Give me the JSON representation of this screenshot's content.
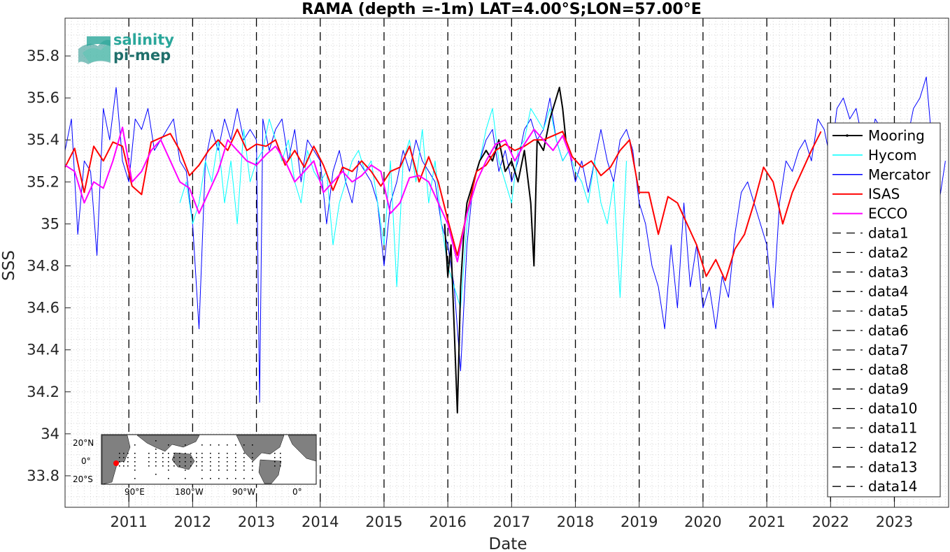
{
  "chart_data": {
    "type": "line",
    "title": "RAMA (depth =-1m) LAT=4.00°S;LON=57.00°E",
    "xlabel": "Date",
    "ylabel": "SSS",
    "xlim": [
      2010.0,
      2023.85
    ],
    "ylim": [
      33.65,
      35.98
    ],
    "grid": "on (minor dotted)",
    "legend_placement": "right",
    "x_ticks": [
      2011,
      2012,
      2013,
      2014,
      2015,
      2016,
      2017,
      2018,
      2019,
      2020,
      2021,
      2022,
      2023
    ],
    "x_tick_labels": [
      "2011",
      "2012",
      "2013",
      "2014",
      "2015",
      "2016",
      "2017",
      "2018",
      "2019",
      "2020",
      "2021",
      "2022",
      "2023"
    ],
    "y_ticks": [
      33.8,
      34,
      34.2,
      34.4,
      34.6,
      34.8,
      35,
      35.2,
      35.4,
      35.6,
      35.8
    ],
    "y_tick_labels": [
      "33.8",
      "34",
      "34.2",
      "34.4",
      "34.6",
      "34.8",
      "35",
      "35.2",
      "35.4",
      "35.6",
      "35.8"
    ],
    "series": [
      {
        "name": "Mercator",
        "color": "#0000ff",
        "x": [
          2010.0,
          2010.1,
          2010.2,
          2010.3,
          2010.4,
          2010.5,
          2010.6,
          2010.7,
          2010.8,
          2010.9,
          2011.0,
          2011.1,
          2011.2,
          2011.3,
          2011.4,
          2011.5,
          2011.6,
          2011.7,
          2011.8,
          2011.9,
          2012.0,
          2012.1,
          2012.2,
          2012.3,
          2012.4,
          2012.5,
          2012.6,
          2012.7,
          2012.8,
          2012.9,
          2013.0,
          2013.05,
          2013.1,
          2013.2,
          2013.3,
          2013.4,
          2013.5,
          2013.6,
          2013.7,
          2013.8,
          2013.9,
          2014.0,
          2014.1,
          2014.2,
          2014.3,
          2014.4,
          2014.5,
          2014.6,
          2014.7,
          2014.8,
          2014.9,
          2015.0,
          2015.1,
          2015.2,
          2015.3,
          2015.4,
          2015.5,
          2015.6,
          2015.7,
          2015.8,
          2015.9,
          2016.0,
          2016.1,
          2016.2,
          2016.3,
          2016.4,
          2016.5,
          2016.6,
          2016.7,
          2016.8,
          2016.9,
          2017.0,
          2017.1,
          2017.2,
          2017.3,
          2017.4,
          2017.5,
          2017.6,
          2017.7,
          2017.8,
          2017.9,
          2018.0,
          2018.1,
          2018.2,
          2018.3,
          2018.4,
          2018.5,
          2018.6,
          2018.7,
          2018.8,
          2018.9,
          2019.0,
          2019.1,
          2019.2,
          2019.3,
          2019.4,
          2019.5,
          2019.6,
          2019.7,
          2019.8,
          2019.9,
          2020.0,
          2020.1,
          2020.2,
          2020.3,
          2020.4,
          2020.5,
          2020.6,
          2020.7,
          2020.8,
          2020.9,
          2021.0,
          2021.1,
          2021.2,
          2021.3,
          2021.4,
          2021.5,
          2021.6,
          2021.7,
          2021.8,
          2021.9,
          2022.0,
          2022.1,
          2022.2,
          2022.3,
          2022.4,
          2022.5,
          2022.6,
          2022.7,
          2022.8,
          2022.9,
          2023.0,
          2023.1,
          2023.2,
          2023.3,
          2023.4,
          2023.5,
          2023.6,
          2023.7,
          2023.8
        ],
        "y": [
          35.35,
          35.5,
          34.95,
          35.3,
          35.25,
          34.85,
          35.55,
          35.4,
          35.65,
          35.3,
          35.2,
          35.5,
          35.45,
          35.55,
          35.35,
          35.4,
          35.45,
          35.5,
          35.3,
          35.25,
          35.0,
          34.5,
          35.3,
          35.45,
          35.35,
          35.5,
          35.4,
          35.55,
          35.4,
          35.45,
          35.4,
          34.15,
          35.5,
          35.35,
          35.45,
          35.5,
          35.3,
          35.45,
          35.2,
          35.4,
          35.35,
          35.3,
          35.0,
          35.25,
          35.35,
          35.2,
          35.1,
          35.3,
          35.25,
          35.2,
          35.1,
          34.8,
          35.1,
          35.2,
          35.35,
          35.25,
          35.4,
          35.3,
          35.25,
          35.2,
          35.0,
          34.9,
          34.7,
          34.3,
          34.9,
          35.2,
          35.3,
          35.4,
          35.45,
          35.25,
          35.35,
          35.2,
          35.3,
          35.45,
          35.5,
          35.4,
          35.45,
          35.6,
          35.4,
          35.3,
          35.35,
          35.2,
          35.3,
          35.15,
          35.3,
          35.45,
          35.3,
          35.2,
          35.4,
          35.45,
          35.35,
          35.1,
          35.0,
          34.8,
          34.7,
          34.5,
          34.9,
          34.6,
          35.1,
          34.7,
          34.9,
          34.6,
          34.7,
          34.5,
          34.75,
          34.65,
          34.95,
          35.15,
          35.2,
          35.1,
          35.0,
          34.9,
          34.6,
          35.1,
          35.3,
          35.25,
          35.35,
          35.4,
          35.3,
          35.5,
          35.45,
          35.3,
          35.55,
          35.6,
          35.5,
          35.55,
          35.4,
          35.35,
          35.5,
          35.45,
          35.45,
          35.3,
          35.2,
          35.4,
          35.55,
          35.6,
          35.7,
          35.35,
          35.1,
          35.3
        ],
        "line_width": 1
      },
      {
        "name": "Hycom",
        "color": "#00ffff",
        "x": [
          2011.8,
          2011.9,
          2012.0,
          2012.1,
          2012.2,
          2012.3,
          2012.4,
          2012.5,
          2012.6,
          2012.7,
          2012.8,
          2012.9,
          2013.0,
          2013.1,
          2013.2,
          2013.3,
          2013.4,
          2013.5,
          2013.6,
          2013.7,
          2013.8,
          2013.9,
          2014.0,
          2014.1,
          2014.2,
          2014.3,
          2014.4,
          2014.5,
          2014.6,
          2014.7,
          2014.8,
          2014.9,
          2015.0,
          2015.1,
          2015.2,
          2015.3,
          2015.4,
          2015.5,
          2015.6,
          2015.7,
          2015.8,
          2015.9,
          2016.0,
          2016.1,
          2016.2,
          2016.3,
          2016.4,
          2016.5,
          2016.6,
          2016.7,
          2016.8,
          2016.9,
          2017.0,
          2017.1,
          2017.2,
          2017.3,
          2017.4,
          2017.5,
          2017.6,
          2017.7,
          2017.8,
          2017.9,
          2018.0,
          2018.1,
          2018.2,
          2018.3,
          2018.4,
          2018.5,
          2018.6,
          2018.7,
          2018.8
        ],
        "y": [
          35.1,
          35.2,
          35.0,
          35.1,
          35.3,
          35.2,
          35.4,
          35.1,
          35.3,
          35.0,
          35.45,
          35.2,
          35.3,
          35.35,
          35.5,
          35.4,
          35.3,
          35.4,
          35.2,
          35.1,
          35.35,
          35.25,
          35.2,
          35.25,
          34.9,
          35.1,
          35.2,
          35.3,
          35.35,
          35.25,
          35.3,
          35.1,
          34.9,
          35.3,
          34.7,
          35.3,
          35.4,
          35.2,
          35.45,
          35.1,
          35.3,
          35.0,
          34.8,
          34.7,
          34.6,
          35.0,
          35.2,
          35.3,
          35.45,
          35.55,
          35.3,
          35.2,
          35.1,
          35.35,
          35.4,
          35.55,
          35.5,
          35.45,
          35.55,
          35.4,
          35.3,
          35.35,
          35.25,
          35.2,
          35.1,
          35.3,
          35.1,
          35.0,
          35.2,
          34.65,
          35.3
        ],
        "line_width": 1
      },
      {
        "name": "Mooring",
        "color": "#000000",
        "x": [
          2015.95,
          2016.0,
          2016.05,
          2016.1,
          2016.15,
          2016.2,
          2016.25,
          2016.3,
          2016.4,
          2016.5,
          2016.6,
          2016.7,
          2016.8,
          2016.9,
          2017.0,
          2017.1,
          2017.2,
          2017.3,
          2017.35,
          2017.4,
          2017.5,
          2017.6,
          2017.7,
          2017.75,
          2017.8,
          2017.85
        ],
        "y": [
          35.0,
          34.75,
          34.9,
          34.5,
          34.1,
          34.7,
          34.95,
          35.1,
          35.2,
          35.3,
          35.35,
          35.3,
          35.4,
          35.25,
          35.3,
          35.2,
          35.35,
          35.1,
          34.8,
          35.4,
          35.35,
          35.5,
          35.6,
          35.65,
          35.55,
          35.4
        ],
        "line_width": 2
      },
      {
        "name": "ISAS",
        "color": "#ff0000",
        "x": [
          2010.0,
          2010.15,
          2010.3,
          2010.45,
          2010.6,
          2010.75,
          2010.9,
          2011.05,
          2011.2,
          2011.35,
          2011.5,
          2011.65,
          2011.8,
          2011.95,
          2012.1,
          2012.25,
          2012.4,
          2012.55,
          2012.7,
          2012.85,
          2013.0,
          2013.15,
          2013.3,
          2013.45,
          2013.6,
          2013.75,
          2013.9,
          2014.05,
          2014.2,
          2014.35,
          2014.5,
          2014.65,
          2014.8,
          2014.95,
          2015.1,
          2015.25,
          2015.4,
          2015.55,
          2015.7,
          2015.85,
          2016.0,
          2016.15,
          2016.3,
          2016.45,
          2016.6,
          2016.75,
          2016.9,
          2017.05,
          2017.2,
          2017.35,
          2017.5,
          2017.65,
          2017.8,
          2017.95,
          2018.1,
          2018.25,
          2018.4,
          2018.55,
          2018.7,
          2018.85,
          2019.0,
          2019.15,
          2019.3,
          2019.45,
          2019.6,
          2019.75,
          2019.9,
          2020.05,
          2020.2,
          2020.35,
          2020.5,
          2020.65,
          2020.8,
          2020.95,
          2021.1,
          2021.25,
          2021.4,
          2021.55,
          2021.7,
          2021.85
        ],
        "y": [
          35.27,
          35.36,
          35.15,
          35.37,
          35.3,
          35.39,
          35.37,
          35.18,
          35.14,
          35.39,
          35.41,
          35.43,
          35.35,
          35.23,
          35.28,
          35.35,
          35.4,
          35.35,
          35.45,
          35.35,
          35.38,
          35.37,
          35.4,
          35.28,
          35.35,
          35.27,
          35.37,
          35.28,
          35.16,
          35.27,
          35.25,
          35.3,
          35.25,
          35.18,
          35.25,
          35.27,
          35.37,
          35.2,
          35.32,
          35.2,
          35.02,
          34.85,
          35.05,
          35.25,
          35.28,
          35.35,
          35.38,
          35.35,
          35.37,
          35.4,
          35.4,
          35.42,
          35.44,
          35.32,
          35.27,
          35.3,
          35.23,
          35.27,
          35.35,
          35.4,
          35.15,
          35.15,
          34.95,
          35.13,
          35.1,
          35.0,
          34.9,
          34.75,
          34.83,
          34.73,
          34.88,
          34.95,
          35.1,
          35.27,
          35.2,
          35.0,
          35.15,
          35.25,
          35.35,
          35.44
        ],
        "line_width": 2
      },
      {
        "name": "ECCO",
        "color": "#ff00ff",
        "x": [
          2010.0,
          2010.15,
          2010.3,
          2010.45,
          2010.6,
          2010.75,
          2010.9,
          2011.05,
          2011.2,
          2011.35,
          2011.5,
          2011.65,
          2011.8,
          2011.95,
          2012.1,
          2012.25,
          2012.4,
          2012.55,
          2012.7,
          2012.85,
          2013.0,
          2013.15,
          2013.3,
          2013.45,
          2013.6,
          2013.75,
          2013.9,
          2014.05,
          2014.2,
          2014.35,
          2014.5,
          2014.65,
          2014.8,
          2014.95,
          2015.1,
          2015.25,
          2015.4,
          2015.55,
          2015.7,
          2015.85,
          2016.0,
          2016.15,
          2016.3,
          2016.45,
          2016.6,
          2016.75,
          2016.9,
          2017.05,
          2017.2,
          2017.35,
          2017.5,
          2017.65,
          2017.8,
          2017.95
        ],
        "y": [
          35.28,
          35.25,
          35.1,
          35.2,
          35.17,
          35.3,
          35.46,
          35.2,
          35.25,
          35.35,
          35.4,
          35.3,
          35.2,
          35.17,
          35.05,
          35.15,
          35.25,
          35.4,
          35.35,
          35.3,
          35.28,
          35.33,
          35.37,
          35.3,
          35.2,
          35.25,
          35.3,
          35.15,
          35.2,
          35.25,
          35.2,
          35.23,
          35.28,
          35.25,
          35.05,
          35.1,
          35.22,
          35.23,
          35.2,
          35.1,
          35.0,
          34.82,
          35.05,
          35.2,
          35.3,
          35.38,
          35.4,
          35.3,
          35.38,
          35.45,
          35.4,
          35.35,
          35.42,
          35.3
        ],
        "line_width": 2
      }
    ],
    "dashed_series": [
      {
        "name": "data1",
        "x": 2011.0
      },
      {
        "name": "data2",
        "x": 2012.0
      },
      {
        "name": "data3",
        "x": 2013.0
      },
      {
        "name": "data4",
        "x": 2014.0
      },
      {
        "name": "data5",
        "x": 2015.0
      },
      {
        "name": "data6",
        "x": 2016.0
      },
      {
        "name": "data7",
        "x": 2017.0
      },
      {
        "name": "data8",
        "x": 2018.0
      },
      {
        "name": "data9",
        "x": 2019.0
      },
      {
        "name": "data10",
        "x": 2020.0
      },
      {
        "name": "data11",
        "x": 2021.0
      },
      {
        "name": "data12",
        "x": 2022.0
      },
      {
        "name": "data13",
        "x": 2023.0
      },
      {
        "name": "data14",
        "x": 2024.0
      }
    ],
    "legend": [
      "Mooring",
      "Hycom",
      "Mercator",
      "ISAS",
      "ECCO",
      "data1",
      "data2",
      "data3",
      "data4",
      "data5",
      "data6",
      "data7",
      "data8",
      "data9",
      "data10",
      "data11",
      "data12",
      "data13",
      "data14"
    ]
  },
  "logo": {
    "line1": "salinity",
    "line2": "pi-mep",
    "color1": "#2aa69a",
    "color2": "#1f6f6b"
  },
  "inset_map": {
    "lat_labels": [
      "20°N",
      "0°",
      "20°S"
    ],
    "lon_labels": [
      "90°E",
      "180°W",
      "90°W",
      "0°"
    ],
    "land_color": "#808080",
    "marker_color": "#ff0000"
  }
}
